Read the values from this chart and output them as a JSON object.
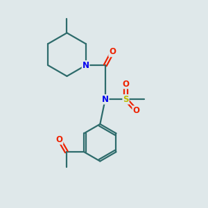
{
  "background_color": "#dfe8ea",
  "bond_color": "#2d6b6b",
  "atom_colors": {
    "N": "#0000ee",
    "O": "#ee2200",
    "S": "#bbbb00",
    "C": "#2d6b6b"
  },
  "figsize": [
    3.0,
    3.0
  ],
  "dpi": 100
}
